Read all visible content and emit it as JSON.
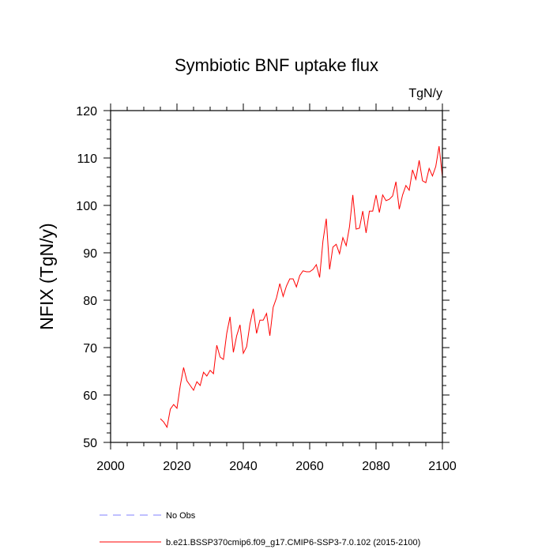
{
  "chart_data": {
    "type": "line",
    "title": "Symbiotic BNF uptake flux",
    "units": "TgN/y",
    "xlabel": "",
    "ylabel": "NFIX  (TgN/y)",
    "xlim": [
      2000,
      2100
    ],
    "ylim": [
      50,
      120
    ],
    "xticks": [
      2000,
      2020,
      2040,
      2060,
      2080,
      2100
    ],
    "yticks": [
      50,
      60,
      70,
      80,
      90,
      100,
      110,
      120
    ],
    "xtick_labels": [
      "2000",
      "2020",
      "2040",
      "2060",
      "2080",
      "2100"
    ],
    "ytick_labels": [
      "50",
      "60",
      "70",
      "80",
      "90",
      "100",
      "110",
      "120"
    ],
    "grid": false,
    "series": [
      {
        "name": "No Obs",
        "color": "#8080ff",
        "style": "dashed",
        "x": [],
        "values": []
      },
      {
        "name": "b.e21.BSSP370cmip6.f09_g17.CMIP6-SSP3-7.0.102 (2015-2100)",
        "color": "#ff0000",
        "style": "solid",
        "x": [
          2015,
          2016,
          2017,
          2018,
          2019,
          2020,
          2021,
          2022,
          2023,
          2024,
          2025,
          2026,
          2027,
          2028,
          2029,
          2030,
          2031,
          2032,
          2033,
          2034,
          2035,
          2036,
          2037,
          2038,
          2039,
          2040,
          2041,
          2042,
          2043,
          2044,
          2045,
          2046,
          2047,
          2048,
          2049,
          2050,
          2051,
          2052,
          2053,
          2054,
          2055,
          2056,
          2057,
          2058,
          2059,
          2060,
          2061,
          2062,
          2063,
          2064,
          2065,
          2066,
          2067,
          2068,
          2069,
          2070,
          2071,
          2072,
          2073,
          2074,
          2075,
          2076,
          2077,
          2078,
          2079,
          2080,
          2081,
          2082,
          2083,
          2084,
          2085,
          2086,
          2087,
          2088,
          2089,
          2090,
          2091,
          2092,
          2093,
          2094,
          2095,
          2096,
          2097,
          2098,
          2099,
          2100
        ],
        "values": [
          55.0,
          54.3,
          53.2,
          57.0,
          58.0,
          57.2,
          62.0,
          65.8,
          63.0,
          62.0,
          61.0,
          62.8,
          62.0,
          64.8,
          64.0,
          65.2,
          64.5,
          70.5,
          68.0,
          67.5,
          73.0,
          76.5,
          69.0,
          72.5,
          74.8,
          68.8,
          70.2,
          75.0,
          78.2,
          73.0,
          75.8,
          75.8,
          77.2,
          72.5,
          78.5,
          80.5,
          83.5,
          80.8,
          83.0,
          84.5,
          84.5,
          82.8,
          85.2,
          86.2,
          86.0,
          86.0,
          86.5,
          87.5,
          84.8,
          92.5,
          97.2,
          86.5,
          91.2,
          91.8,
          89.8,
          93.2,
          91.5,
          95.5,
          102.2,
          95.0,
          95.2,
          98.8,
          94.2,
          98.8,
          98.8,
          102.2,
          98.5,
          102.2,
          101.0,
          101.3,
          102.0,
          105.0,
          99.2,
          102.2,
          104.2,
          103.2,
          107.5,
          105.5,
          109.5,
          105.2,
          104.8,
          107.8,
          106.2,
          108.2,
          112.5,
          106.0
        ]
      }
    ]
  }
}
